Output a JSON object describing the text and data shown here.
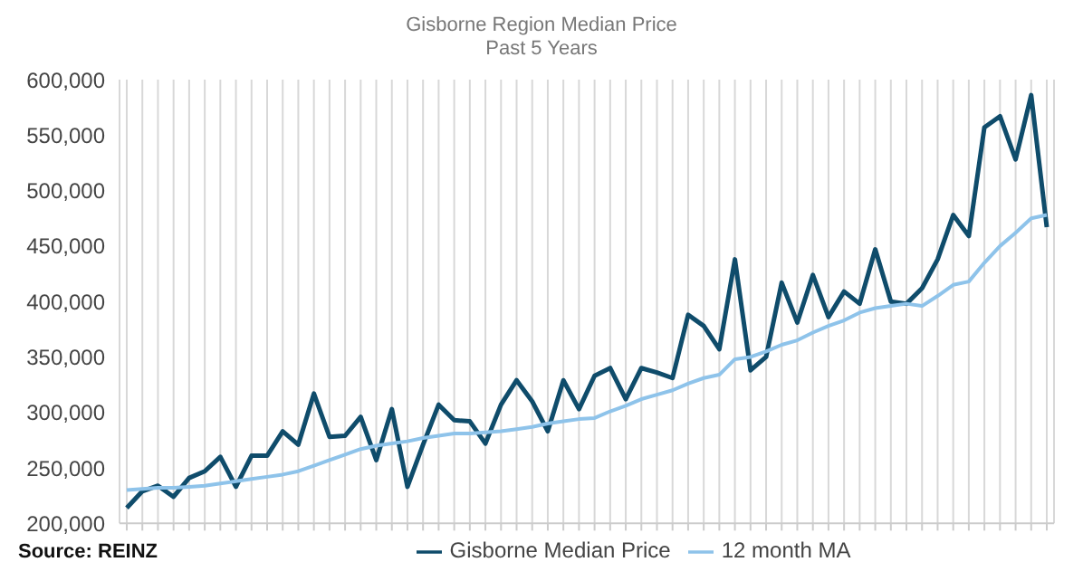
{
  "chart_data": {
    "type": "line",
    "title": "Gisborne Region Median Price",
    "subtitle": "Past 5 Years",
    "categories": [
      null,
      null,
      null,
      null,
      null,
      null,
      null,
      null,
      null,
      null,
      null,
      null,
      null,
      null,
      null,
      null,
      null,
      null,
      null,
      null,
      null,
      null,
      null,
      null,
      null,
      null,
      null,
      null,
      null,
      null,
      null,
      null,
      null,
      null,
      null,
      null,
      null,
      null,
      null,
      null,
      null,
      null,
      null,
      null,
      null,
      null,
      null,
      null,
      null,
      null,
      null,
      null,
      null,
      null,
      null,
      null,
      null,
      null,
      null,
      null
    ],
    "series": [
      {
        "name": "Gisborne Median Price",
        "color": "#0f4c6b",
        "values": [
          214000,
          229000,
          234000,
          224000,
          241000,
          247000,
          260000,
          233000,
          261000,
          261000,
          283000,
          271000,
          317000,
          278000,
          279000,
          296000,
          257000,
          303000,
          233000,
          271000,
          307000,
          293000,
          292000,
          272000,
          307000,
          329000,
          310000,
          283000,
          329000,
          303000,
          333000,
          340000,
          312000,
          340000,
          336000,
          331000,
          388000,
          378000,
          357000,
          438000,
          338000,
          350000,
          417000,
          381000,
          424000,
          386000,
          409000,
          398000,
          447000,
          400000,
          398000,
          412000,
          438000,
          478000,
          459000,
          557000,
          567000,
          528000,
          586000,
          467000
        ]
      },
      {
        "name": "12 month MA",
        "color": "#8ec3ea",
        "values": [
          230000,
          231000,
          232000,
          232000,
          233000,
          234000,
          236000,
          238000,
          240000,
          242000,
          244000,
          247000,
          252000,
          257000,
          262000,
          267000,
          270000,
          272000,
          274000,
          277000,
          279000,
          281000,
          281000,
          282000,
          283000,
          285000,
          287000,
          290000,
          292000,
          294000,
          295000,
          301000,
          306000,
          312000,
          316000,
          320000,
          326000,
          331000,
          334000,
          348000,
          350000,
          355000,
          361000,
          365000,
          372000,
          378000,
          383000,
          390000,
          394000,
          396000,
          398000,
          396000,
          405000,
          415000,
          418000,
          435000,
          450000,
          462000,
          475000,
          478000
        ]
      }
    ],
    "ylim": [
      200000,
      600000
    ],
    "yticks": [
      {
        "value": 200000,
        "label": "200,000"
      },
      {
        "value": 250000,
        "label": "250,000"
      },
      {
        "value": 300000,
        "label": "300,000"
      },
      {
        "value": 350000,
        "label": "350,000"
      },
      {
        "value": 400000,
        "label": "400,000"
      },
      {
        "value": 450000,
        "label": "450,000"
      },
      {
        "value": 500000,
        "label": "500,000"
      },
      {
        "value": 550000,
        "label": "550,000"
      },
      {
        "value": 600000,
        "label": "600,000"
      }
    ],
    "grid": "x",
    "legend": "bottom",
    "marker": "none",
    "line_style": "solid",
    "annotations": [
      "Source: REINZ"
    ]
  }
}
